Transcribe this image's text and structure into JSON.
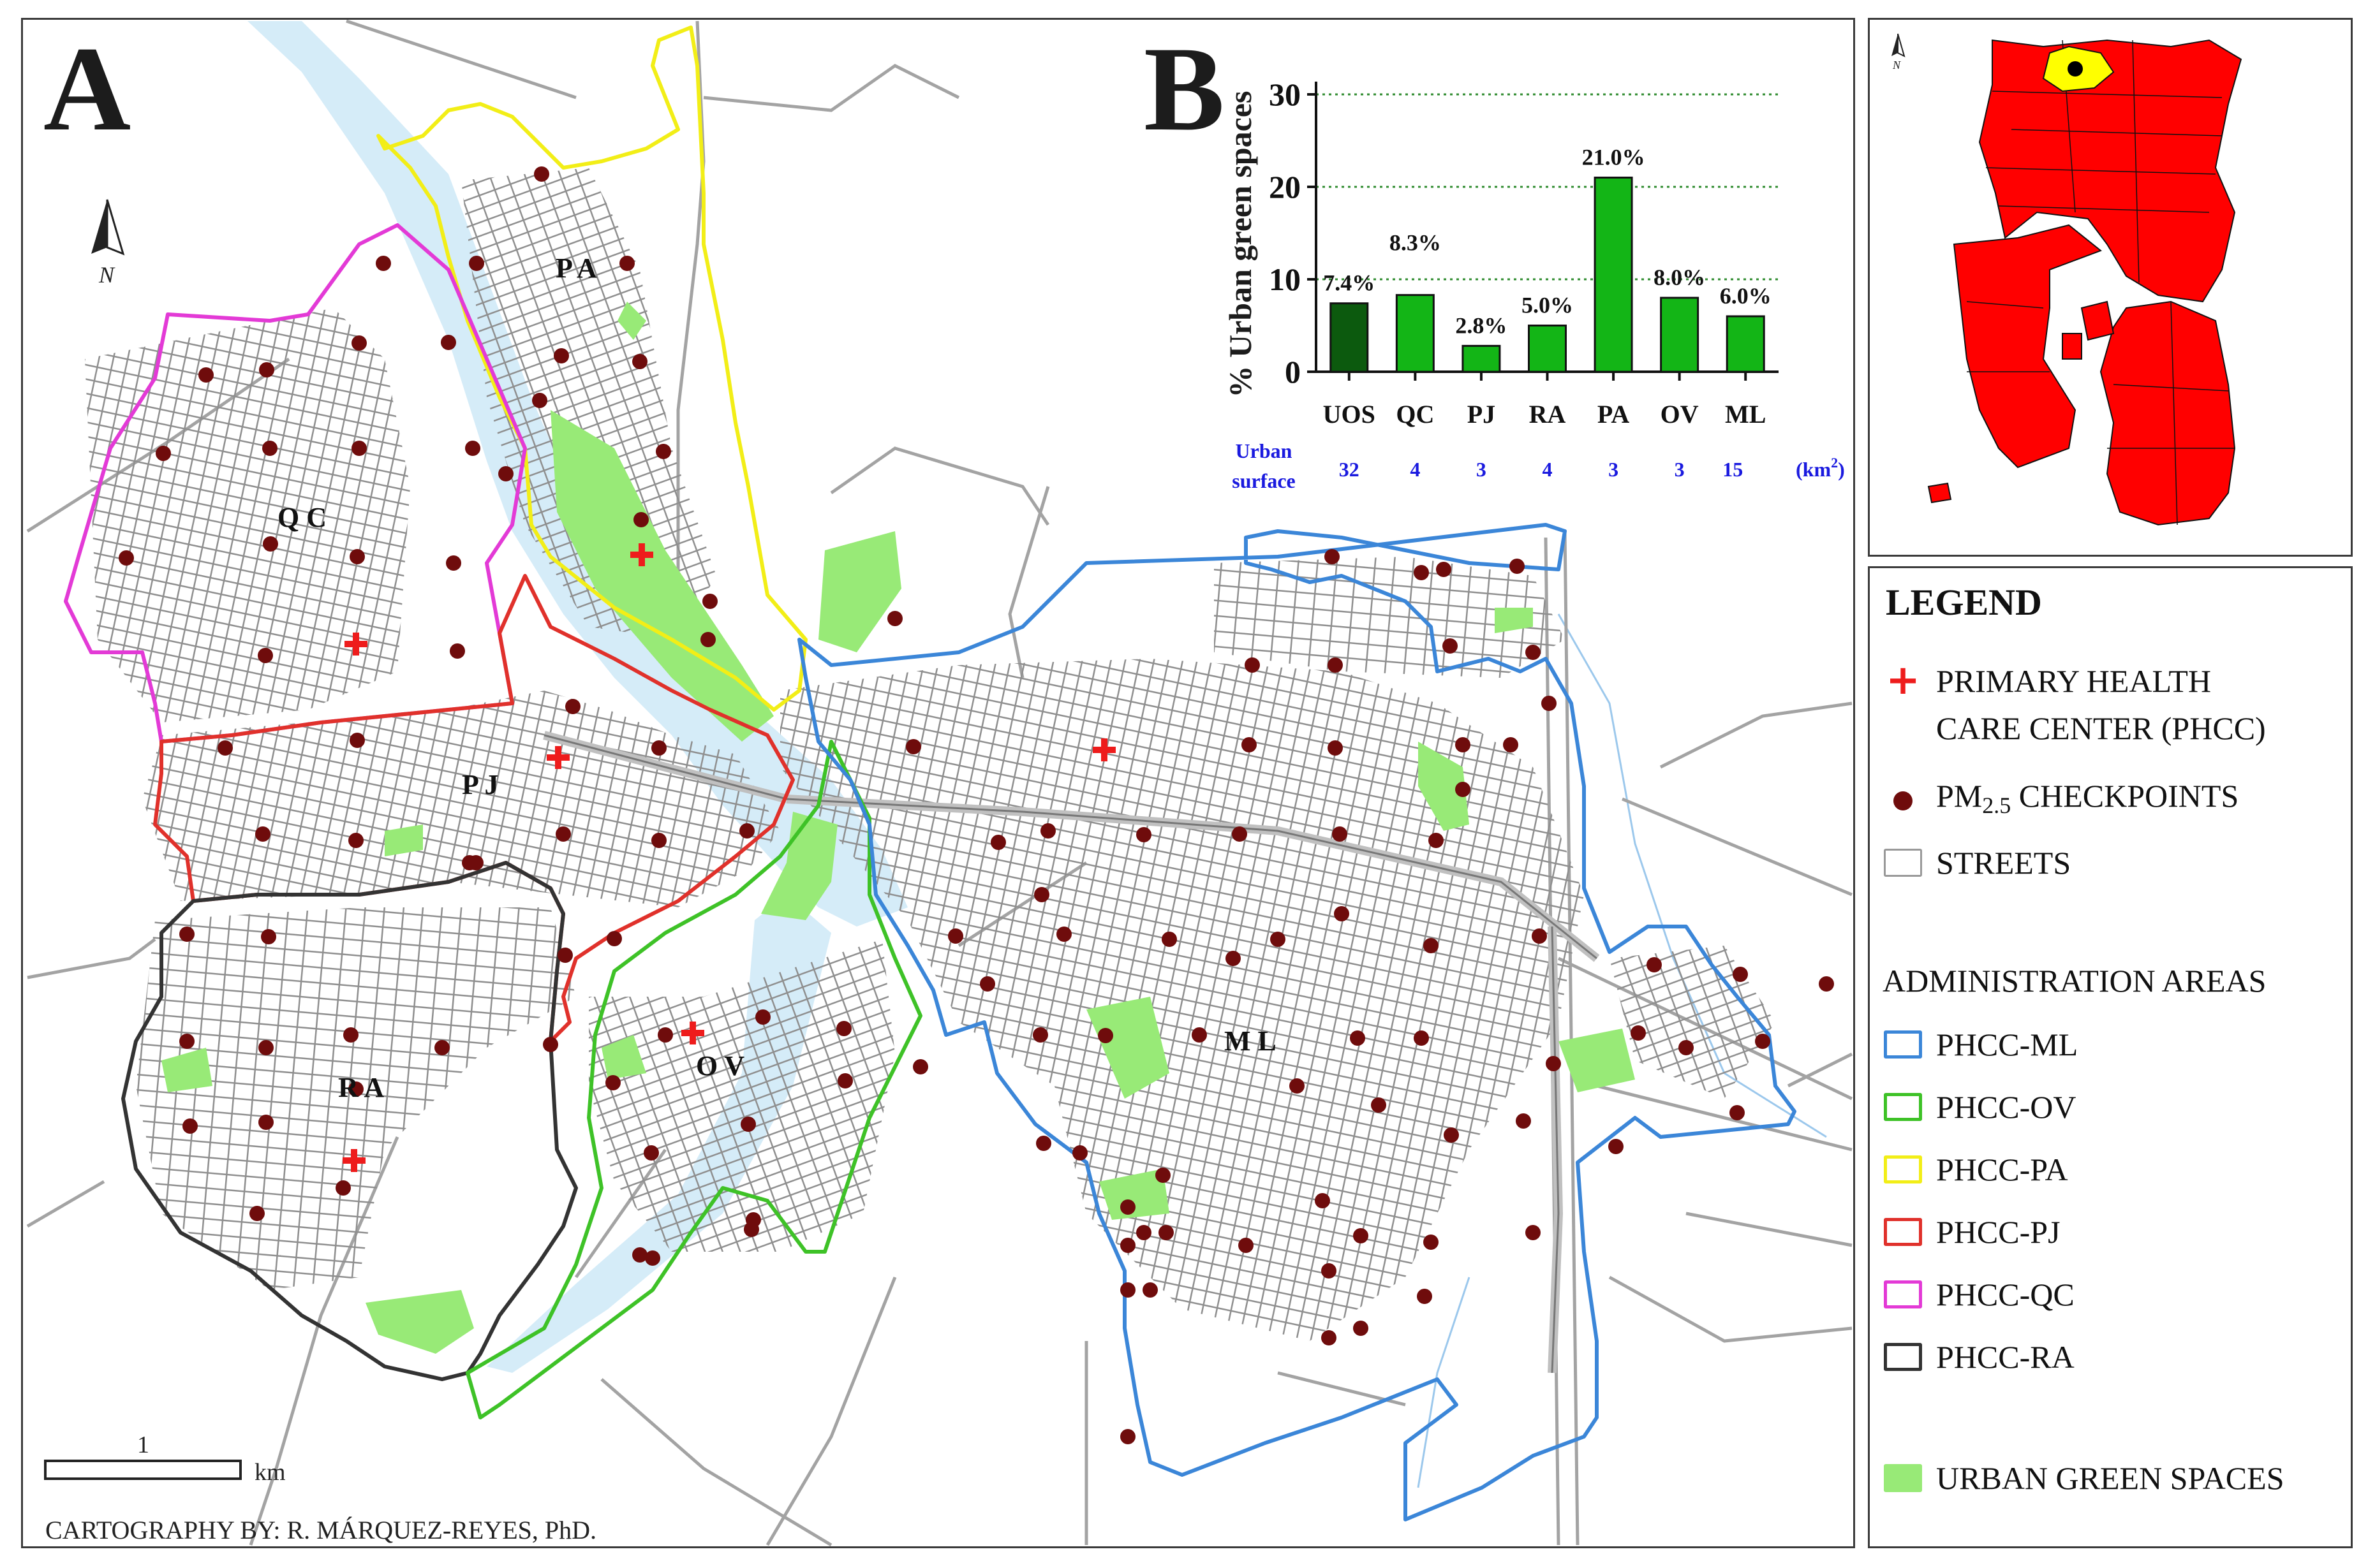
{
  "panel_a": {
    "letter": "A",
    "north_label": "N",
    "scale_value": "1",
    "scale_unit": "km",
    "credit": "CARTOGRAPHY BY: R. MÁRQUEZ-REYES, PhD.",
    "zone_labels": {
      "pa": "P A",
      "qc": "Q C",
      "pj": "P J",
      "ra": "R A",
      "ov": "O V",
      "ml": "M L"
    }
  },
  "inset": {
    "north_label": "N"
  },
  "colors": {
    "ml": "#3b86d8",
    "ov": "#3ec227",
    "pa": "#f2ee17",
    "pj": "#e0312b",
    "qc": "#e33ad6",
    "ra": "#333333",
    "green": "#98ea77",
    "dot": "#6f0c0c",
    "phcc": "#ee1c1c",
    "river": "#d5ecf8",
    "bar_dark": "#0c5a0e",
    "bar": "#13b516",
    "inset_red": "#ff0000",
    "inset_yellow": "#ffff00"
  },
  "legend": {
    "title": "LEGEND",
    "phcc_line1": "PRIMARY HEALTH",
    "phcc_line2": "CARE CENTER (PHCC)",
    "pm_prefix": "PM",
    "pm_sub": "2.5",
    "pm_suffix": " CHECKPOINTS",
    "streets": "STREETS",
    "admin_heading": "ADMINISTRATION AREAS",
    "areas": [
      "PHCC-ML",
      "PHCC-OV",
      "PHCC-PA",
      "PHCC-PJ",
      "PHCC-QC",
      "PHCC-RA"
    ],
    "green_spaces": "URBAN GREEN SPACES"
  },
  "chart_data": {
    "type": "bar",
    "panel_letter": "B",
    "ylabel": "% Urban green spaces",
    "categories": [
      "UOS",
      "QC",
      "PJ",
      "RA",
      "PA",
      "OV",
      "ML"
    ],
    "values": [
      7.4,
      8.3,
      2.8,
      5.0,
      21.0,
      8.0,
      6.0
    ],
    "value_labels": [
      "7.4%",
      "8.3%",
      "2.8%",
      "5.0%",
      "21.0%",
      "8.0%",
      "6.0%"
    ],
    "highlight_category": "UOS",
    "ylim": [
      0,
      30
    ],
    "yticks": [
      0,
      10,
      20,
      30
    ],
    "grid": true,
    "urban_surface_label_line1": "Urban",
    "urban_surface_label_line2": "surface",
    "urban_surface_values": [
      "32",
      "4",
      "3",
      "4",
      "3",
      "3",
      "15"
    ],
    "urban_surface_unit": "(km",
    "urban_surface_unit_sup": "2",
    "urban_surface_unit_close": ")"
  }
}
